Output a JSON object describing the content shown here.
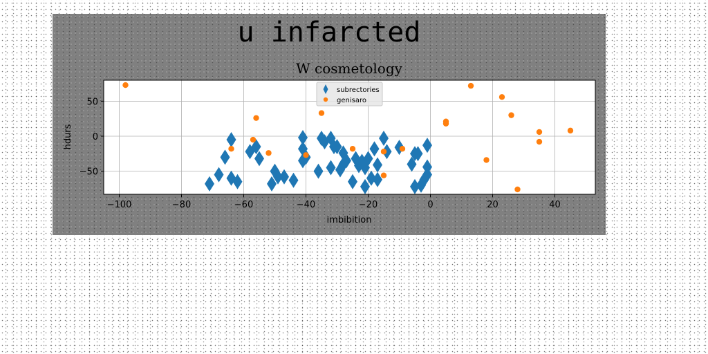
{
  "chart_data": {
    "type": "scatter",
    "suptitle": "u infarcted",
    "title": "W cosmetology",
    "xlabel": "imbibition",
    "ylabel": "hdurs",
    "xlim": [
      -105,
      53
    ],
    "ylim": [
      -83,
      80
    ],
    "xticks": [
      -100,
      -80,
      -60,
      -40,
      -20,
      0,
      20,
      40
    ],
    "yticks": [
      -50,
      0,
      50
    ],
    "grid": true,
    "legend_position": "top-center",
    "series": [
      {
        "name": "subrectories",
        "marker": "diamond",
        "color": "#1f77b4",
        "points": [
          [
            -71,
            -68
          ],
          [
            -68,
            -55
          ],
          [
            -66,
            -30
          ],
          [
            -64,
            -5
          ],
          [
            -64,
            -60
          ],
          [
            -62,
            -65
          ],
          [
            -58,
            -22
          ],
          [
            -56,
            -15
          ],
          [
            -55,
            -32
          ],
          [
            -51,
            -68
          ],
          [
            -50,
            -50
          ],
          [
            -49,
            -58
          ],
          [
            -47,
            -58
          ],
          [
            -44,
            -63
          ],
          [
            -41,
            -2
          ],
          [
            -41,
            -18
          ],
          [
            -41,
            -35
          ],
          [
            -40,
            -30
          ],
          [
            -36,
            -50
          ],
          [
            -35,
            -3
          ],
          [
            -34,
            -8
          ],
          [
            -32,
            -3
          ],
          [
            -32,
            -45
          ],
          [
            -31,
            -15
          ],
          [
            -30,
            -15
          ],
          [
            -29,
            -48
          ],
          [
            -28,
            -24
          ],
          [
            -28,
            -40
          ],
          [
            -27,
            -35
          ],
          [
            -25,
            -65
          ],
          [
            -24,
            -32
          ],
          [
            -23,
            -42
          ],
          [
            -22,
            -36
          ],
          [
            -21,
            -45
          ],
          [
            -21,
            -72
          ],
          [
            -20,
            -32
          ],
          [
            -19,
            -60
          ],
          [
            -18,
            -18
          ],
          [
            -17,
            -62
          ],
          [
            -17,
            -41
          ],
          [
            -15,
            -3
          ],
          [
            -14,
            -22
          ],
          [
            -10,
            -16
          ],
          [
            -6,
            -40
          ],
          [
            -5,
            -25
          ],
          [
            -5,
            -72
          ],
          [
            -4,
            -25
          ],
          [
            -3,
            -70
          ],
          [
            -2,
            -62
          ],
          [
            -1,
            -55
          ],
          [
            -1,
            -44
          ],
          [
            -1,
            -13
          ]
        ]
      },
      {
        "name": "genisaro",
        "marker": "circle",
        "color": "#ff7f0e",
        "points": [
          [
            -98,
            73
          ],
          [
            -64,
            -18
          ],
          [
            -57,
            -5
          ],
          [
            -56,
            26
          ],
          [
            -52,
            -24
          ],
          [
            -40,
            -27
          ],
          [
            -35,
            33
          ],
          [
            -25,
            -18
          ],
          [
            -15,
            -22
          ],
          [
            -15,
            -56
          ],
          [
            -9,
            -18
          ],
          [
            5,
            18
          ],
          [
            5,
            21
          ],
          [
            13,
            72
          ],
          [
            18,
            -34
          ],
          [
            23,
            56
          ],
          [
            26,
            30
          ],
          [
            28,
            -76
          ],
          [
            35,
            6
          ],
          [
            35,
            -8
          ],
          [
            45,
            8
          ]
        ]
      }
    ]
  }
}
